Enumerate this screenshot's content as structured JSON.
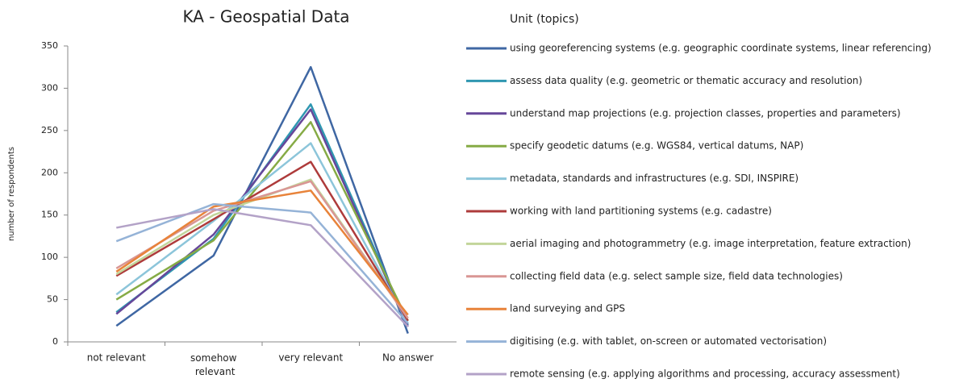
{
  "chart_data": {
    "type": "line",
    "title": "KA - Geospatial Data",
    "ylabel": "number of respondents",
    "legend_title": "Unit (topics)",
    "categories": [
      "not relevant",
      "somehow relevant",
      "very relevant",
      "No answer"
    ],
    "ylim": [
      0,
      350
    ],
    "yticks": [
      0,
      50,
      100,
      150,
      200,
      250,
      300,
      350
    ],
    "grid": false,
    "legend": "right",
    "series": [
      {
        "name": "using georeferencing systems (e.g. geographic coordinate systems, linear referencing)",
        "color": "#3f67a3",
        "values": [
          19,
          102,
          325,
          10
        ]
      },
      {
        "name": "assess data quality (e.g. geometric or thematic accuracy and resolution)",
        "color": "#2f97b1",
        "values": [
          35,
          122,
          281,
          20
        ]
      },
      {
        "name": "understand map projections (e.g. projection classes, properties and parameters)",
        "color": "#66479a",
        "values": [
          33,
          127,
          275,
          18
        ]
      },
      {
        "name": "specify geodetic datums (e.g. WGS84, vertical datums, NAP)",
        "color": "#86ab45",
        "values": [
          50,
          120,
          260,
          25
        ]
      },
      {
        "name": "metadata, standards and infrastructures (e.g. SDI, INSPIRE)",
        "color": "#8cc5da",
        "values": [
          56,
          143,
          235,
          22
        ]
      },
      {
        "name": "working with land partitioning systems (e.g. cadastre)",
        "color": "#ae3b3b",
        "values": [
          78,
          145,
          213,
          25
        ]
      },
      {
        "name": "aerial imaging and photogrammetry (e.g. image interpretation, feature extraction)",
        "color": "#c2d59a",
        "values": [
          80,
          150,
          192,
          28
        ]
      },
      {
        "name": "collecting field data (e.g. select sample size, field data technologies)",
        "color": "#d99694",
        "values": [
          87,
          155,
          190,
          28
        ]
      },
      {
        "name": "land surveying and GPS",
        "color": "#e8833a",
        "values": [
          83,
          160,
          179,
          32
        ]
      },
      {
        "name": "digitising (e.g. with tablet, on-screen or automated vectorisation)",
        "color": "#95b3d7",
        "values": [
          119,
          163,
          153,
          22
        ]
      },
      {
        "name": "remote sensing (e.g. applying algorithms and processing, accuracy assessment)",
        "color": "#b3a2c7",
        "values": [
          135,
          157,
          138,
          18
        ]
      }
    ]
  }
}
